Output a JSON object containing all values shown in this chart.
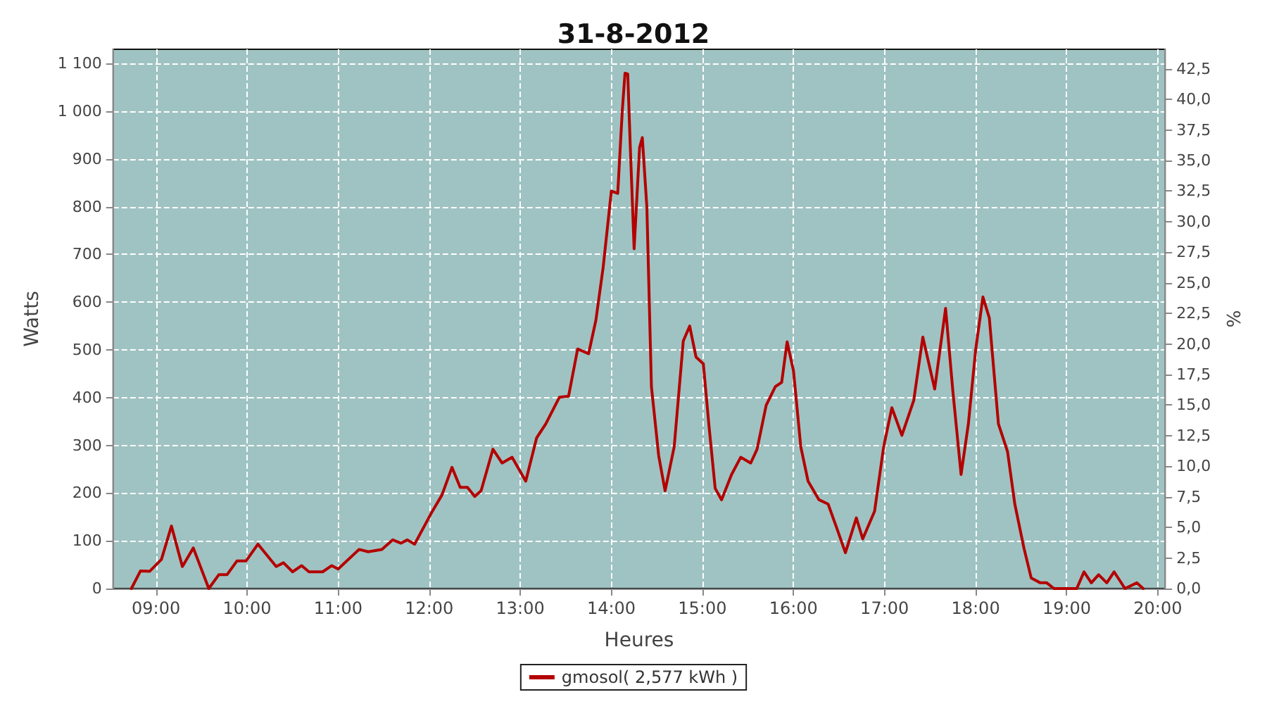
{
  "chart_data": {
    "type": "line",
    "title": "31-8-2012",
    "xlabel": "Heures",
    "ylabel": "Watts",
    "y2label": "%",
    "x": [
      8.73,
      8.83,
      8.93,
      9.06,
      9.17,
      9.29,
      9.41,
      9.58,
      9.69,
      9.78,
      9.89,
      9.99,
      10.12,
      10.32,
      10.4,
      10.5,
      10.6,
      10.68,
      10.83,
      10.93,
      11.0,
      11.23,
      11.33,
      11.48,
      11.6,
      11.69,
      11.76,
      11.84,
      12.02,
      12.14,
      12.25,
      12.34,
      12.42,
      12.5,
      12.57,
      12.7,
      12.8,
      12.91,
      13.06,
      13.18,
      13.28,
      13.43,
      13.53,
      13.63,
      13.75,
      13.83,
      13.91,
      14.0,
      14.07,
      14.12,
      14.15,
      14.18,
      14.21,
      14.25,
      14.31,
      14.34,
      14.39,
      14.44,
      14.52,
      14.59,
      14.69,
      14.79,
      14.86,
      14.93,
      15.01,
      15.07,
      15.14,
      15.21,
      15.32,
      15.42,
      15.53,
      15.6,
      15.7,
      15.8,
      15.87,
      15.93,
      16.0,
      16.08,
      16.16,
      16.28,
      16.38,
      16.48,
      16.57,
      16.69,
      16.76,
      16.89,
      16.99,
      17.08,
      17.19,
      17.32,
      17.42,
      17.55,
      17.67,
      17.75,
      17.84,
      17.92,
      18.0,
      18.08,
      18.15,
      18.25,
      18.35,
      18.43,
      18.53,
      18.61,
      18.71,
      18.78,
      18.86,
      19.01,
      19.11,
      19.19,
      19.27,
      19.35,
      19.44,
      19.52,
      19.64,
      19.77,
      19.84
    ],
    "series": [
      {
        "name": "gmosol( 2,577 kWh )",
        "color": "#b40000",
        "values": [
          0,
          37,
          36,
          61,
          131,
          46,
          85,
          0,
          29,
          29,
          58,
          58,
          93,
          46,
          54,
          35,
          48,
          35,
          35,
          48,
          41,
          82,
          77,
          82,
          102,
          95,
          102,
          93,
          157,
          196,
          254,
          212,
          212,
          193,
          205,
          292,
          263,
          275,
          225,
          316,
          345,
          401,
          403,
          502,
          492,
          562,
          673,
          833,
          828,
          1001,
          1080,
          1078,
          915,
          712,
          924,
          945,
          799,
          423,
          278,
          205,
          297,
          519,
          550,
          485,
          471,
          345,
          210,
          186,
          239,
          275,
          263,
          292,
          384,
          423,
          432,
          517,
          456,
          297,
          225,
          186,
          177,
          124,
          75,
          148,
          104,
          162,
          297,
          379,
          321,
          394,
          527,
          418,
          587,
          413,
          239,
          345,
          500,
          611,
          567,
          345,
          287,
          177,
          85,
          22,
          12,
          12,
          0,
          0,
          0,
          35,
          12,
          29,
          12,
          35,
          0,
          12,
          0
        ]
      }
    ],
    "xlim": [
      8.53,
      20.08
    ],
    "xticks": [
      {
        "value": 9,
        "label": "09:00"
      },
      {
        "value": 10,
        "label": "10:00"
      },
      {
        "value": 11,
        "label": "11:00"
      },
      {
        "value": 12,
        "label": "12:00"
      },
      {
        "value": 13,
        "label": "13:00"
      },
      {
        "value": 14,
        "label": "14:00"
      },
      {
        "value": 15,
        "label": "15:00"
      },
      {
        "value": 16,
        "label": "16:00"
      },
      {
        "value": 17,
        "label": "17:00"
      },
      {
        "value": 18,
        "label": "18:00"
      },
      {
        "value": 19,
        "label": "19:00"
      },
      {
        "value": 20,
        "label": "20:00"
      }
    ],
    "ylim": [
      0,
      1130
    ],
    "yticks": [
      0,
      100,
      200,
      300,
      400,
      500,
      600,
      700,
      800,
      900,
      {
        "value": 1000,
        "label": "1 000"
      },
      {
        "value": 1100,
        "label": "1 100"
      }
    ],
    "y2lim": [
      0,
      44.1
    ],
    "y2ticks": [
      {
        "value": 0,
        "label": "0,0"
      },
      {
        "value": 2.5,
        "label": "2,5"
      },
      {
        "value": 5,
        "label": "5,0"
      },
      {
        "value": 7.5,
        "label": "7,5"
      },
      {
        "value": 10,
        "label": "10,0"
      },
      {
        "value": 12.5,
        "label": "12,5"
      },
      {
        "value": 15,
        "label": "15,0"
      },
      {
        "value": 17.5,
        "label": "17,5"
      },
      {
        "value": 20,
        "label": "20,0"
      },
      {
        "value": 22.5,
        "label": "22,5"
      },
      {
        "value": 25,
        "label": "25,0"
      },
      {
        "value": 27.5,
        "label": "27,5"
      },
      {
        "value": 30,
        "label": "30,0"
      },
      {
        "value": 32.5,
        "label": "32,5"
      },
      {
        "value": 35,
        "label": "35,0"
      },
      {
        "value": 37.5,
        "label": "37,5"
      },
      {
        "value": 40,
        "label": "40,0"
      },
      {
        "value": 42.5,
        "label": "42,5"
      }
    ],
    "grid": true,
    "legend": "bottom",
    "marker": "none",
    "line_style": "solid"
  }
}
